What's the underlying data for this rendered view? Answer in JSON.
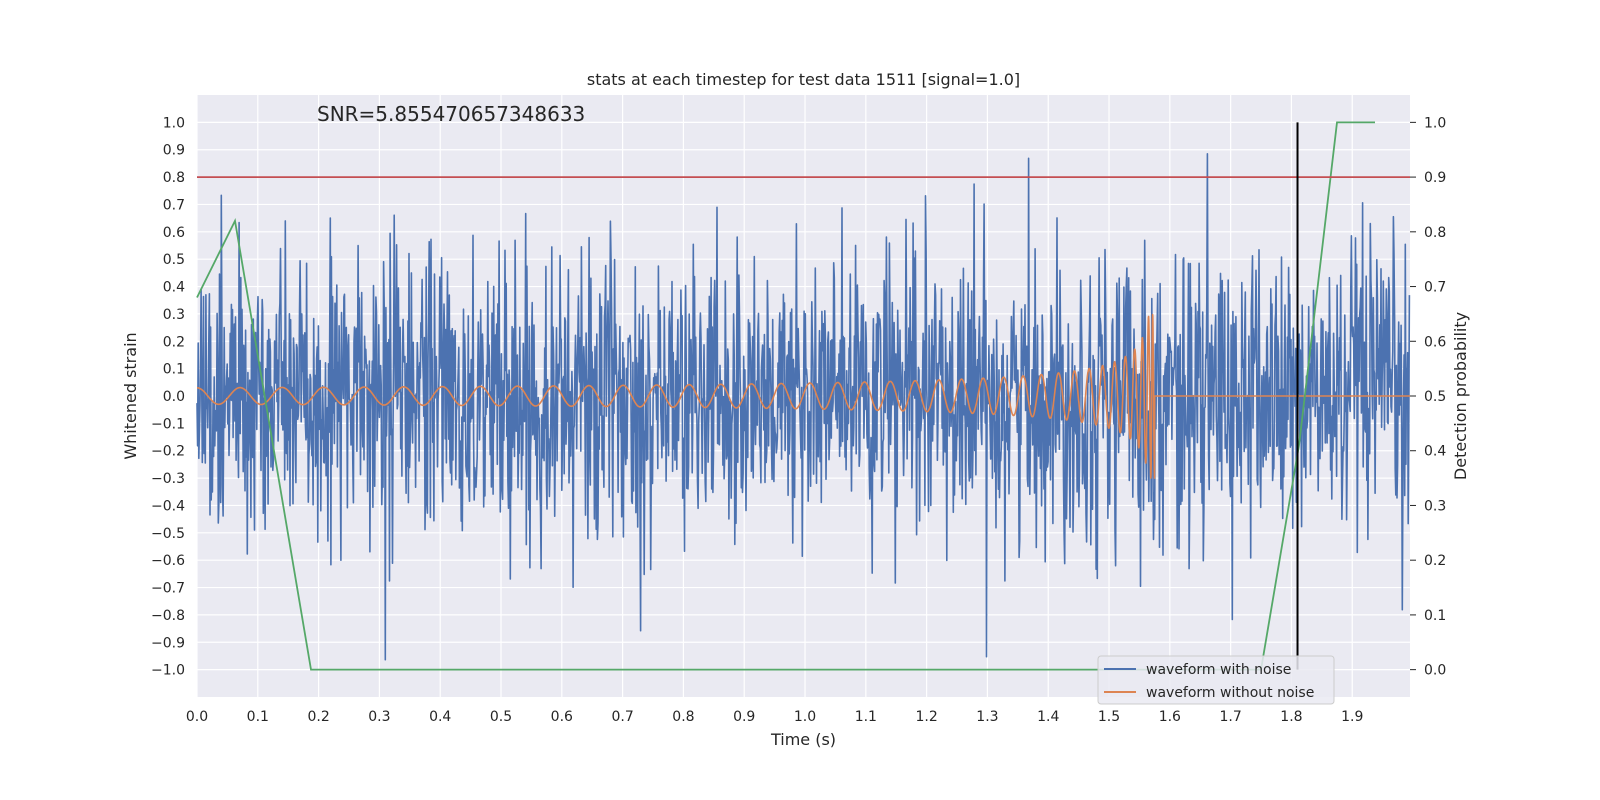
{
  "chart_data": {
    "type": "line",
    "title": "stats at each timestep for test data 1511 [signal=1.0]",
    "xlabel": "Time (s)",
    "ylabel": "Whitened strain",
    "y2label": "Detection probability",
    "annotation": "SNR=5.855470657348633",
    "xlim": [
      0.0,
      1.995
    ],
    "ylim": [
      -1.1,
      1.1
    ],
    "y2lim": [
      -0.05,
      1.05
    ],
    "x_ticks": [
      "0.0",
      "0.1",
      "0.2",
      "0.3",
      "0.4",
      "0.5",
      "0.6",
      "0.7",
      "0.8",
      "0.9",
      "1.0",
      "1.1",
      "1.2",
      "1.3",
      "1.4",
      "1.5",
      "1.6",
      "1.7",
      "1.8",
      "1.9"
    ],
    "y_ticks": [
      "1.0",
      "0.9",
      "0.8",
      "0.7",
      "0.6",
      "0.5",
      "0.4",
      "0.3",
      "0.2",
      "0.1",
      "0.0",
      "−0.1",
      "−0.2",
      "−0.3",
      "−0.4",
      "−0.5",
      "−0.6",
      "−0.7",
      "−0.8",
      "−0.9",
      "−1.0"
    ],
    "y2_ticks": [
      "1.0",
      "0.9",
      "0.8",
      "0.7",
      "0.6",
      "0.5",
      "0.4",
      "0.3",
      "0.2",
      "0.1",
      "0.0"
    ],
    "grid": true,
    "legend_position": "lower-right",
    "series": [
      {
        "name": "waveform with noise",
        "color": "#4c72b0",
        "axis": "left",
        "sample_count": 2048,
        "approx_range": [
          -0.98,
          1.0
        ],
        "note": "dense noise centred at 0.0 with amplitude mostly within ±0.6"
      },
      {
        "name": "waveform without noise",
        "color": "#dd8452",
        "axis": "left",
        "signal_end_x": 1.575,
        "amplitude_start": 0.03,
        "amplitude_peak": 0.3,
        "flat_after": 0.0
      },
      {
        "axis": "right",
        "color": "#55a868",
        "x": [
          0.0,
          0.0625,
          0.1875,
          0.25,
          1.0,
          1.75,
          1.8125,
          1.875,
          1.9375
        ],
        "y": [
          0.68,
          0.82,
          0.0,
          -0.0,
          -0.0,
          0.0,
          0.41,
          1.0,
          1.0
        ]
      }
    ],
    "reference_lines": [
      {
        "orientation": "horizontal",
        "y": 0.8,
        "axis": "left",
        "color": "#c44e52"
      },
      {
        "orientation": "vertical",
        "x": 1.81,
        "y_from": -1.0,
        "y_to": 1.0,
        "color": "#000000"
      }
    ]
  },
  "colors": {
    "plot_background": "#eaeaf2",
    "grid": "#ffffff",
    "noise": "#4c72b0",
    "clean": "#dd8452",
    "probability": "#55a868",
    "threshold": "#c44e52",
    "marker": "#000000"
  }
}
